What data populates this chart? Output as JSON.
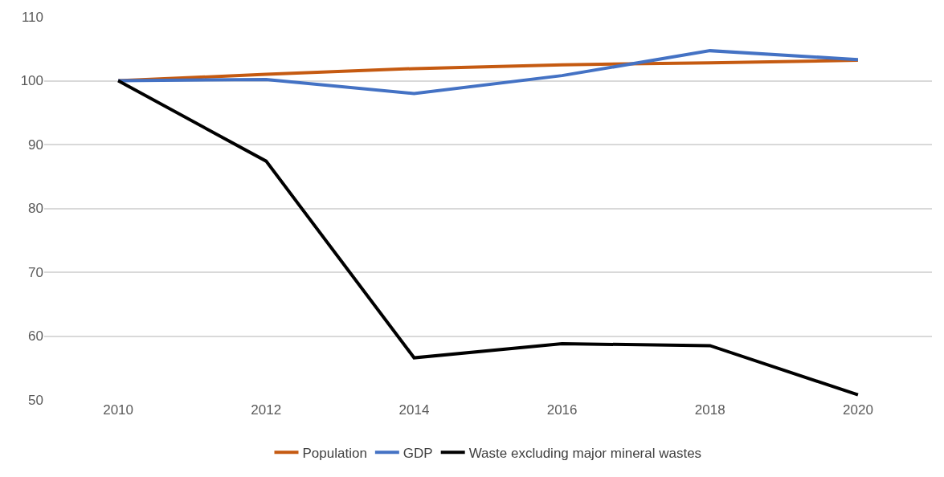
{
  "chart_data": {
    "type": "line",
    "categories": [
      "2010",
      "2012",
      "2014",
      "2016",
      "2018",
      "2020"
    ],
    "series": [
      {
        "name": "Population",
        "color": "#c55a11",
        "values": [
          100,
          101.0,
          101.9,
          102.5,
          102.8,
          103.2
        ]
      },
      {
        "name": "GDP",
        "color": "#4472c4",
        "values": [
          100,
          100.2,
          98.0,
          100.8,
          104.7,
          103.3
        ]
      },
      {
        "name": "Waste excluding major mineral wastes",
        "color": "#000000",
        "values": [
          100,
          87.4,
          56.6,
          58.8,
          58.5,
          50.8
        ]
      }
    ],
    "ylim": [
      50,
      110
    ],
    "yticks": [
      50,
      60,
      70,
      80,
      90,
      100,
      110
    ],
    "grid": "y",
    "legend": "bottom",
    "marker": "none",
    "line_style": "solid"
  }
}
